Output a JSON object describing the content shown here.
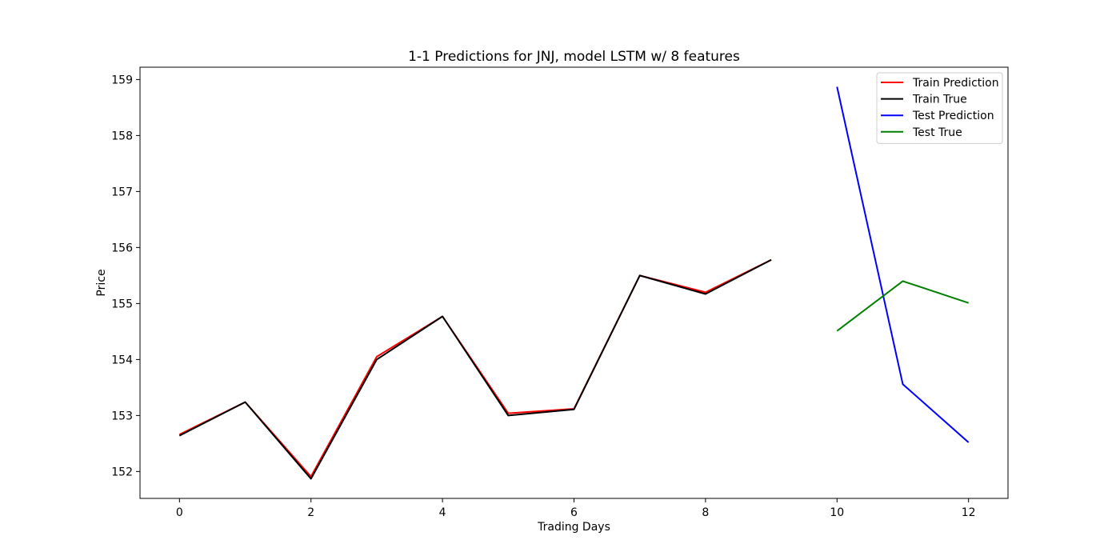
{
  "chart_data": {
    "type": "line",
    "title": "1-1 Predictions for JNJ, model LSTM w/ 8 features",
    "xlabel": "Trading Days",
    "ylabel": "Price",
    "xlim": [
      -0.6,
      12.6
    ],
    "ylim": [
      151.52,
      159.22
    ],
    "xticks": [
      0,
      2,
      4,
      6,
      8,
      10,
      12
    ],
    "yticks": [
      152,
      153,
      154,
      155,
      156,
      157,
      158,
      159
    ],
    "grid": false,
    "legend_position": "top-right",
    "series": [
      {
        "name": "Train Prediction",
        "color": "#ff0000",
        "x": [
          0,
          1,
          2,
          3,
          4,
          5,
          6,
          7,
          8,
          9
        ],
        "values": [
          152.66,
          153.24,
          151.91,
          154.05,
          154.77,
          153.04,
          153.12,
          155.5,
          155.2,
          155.78
        ]
      },
      {
        "name": "Train True",
        "color": "#000000",
        "x": [
          0,
          1,
          2,
          3,
          4,
          5,
          6,
          7,
          8,
          9
        ],
        "values": [
          152.64,
          153.24,
          151.87,
          154.0,
          154.77,
          153.0,
          153.11,
          155.5,
          155.17,
          155.78
        ]
      },
      {
        "name": "Test Prediction",
        "color": "#0000ff",
        "x": [
          10,
          11,
          12
        ],
        "values": [
          158.87,
          153.56,
          152.52
        ]
      },
      {
        "name": "Test True",
        "color": "#008000",
        "x": [
          10,
          11,
          12
        ],
        "values": [
          154.51,
          155.4,
          155.01
        ]
      }
    ]
  }
}
